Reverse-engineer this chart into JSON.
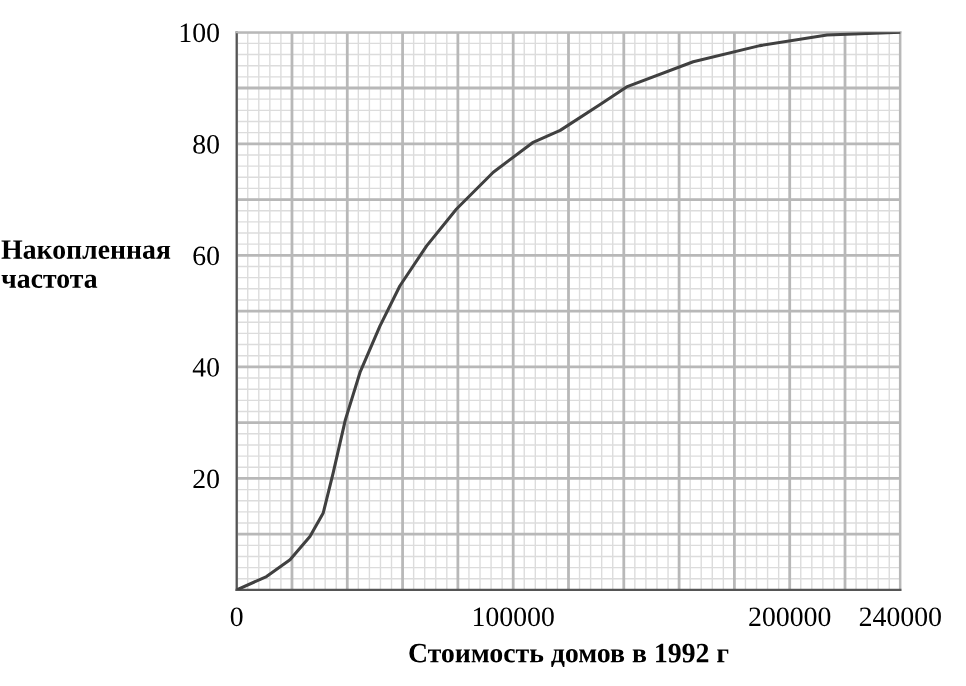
{
  "chart_data": {
    "type": "line",
    "xlabel": "Стоимость домов в 1992 г",
    "ylabel": "Накопленная\nчастота",
    "x": [
      0,
      10800,
      19300,
      26500,
      31300,
      34900,
      39300,
      44600,
      51800,
      59000,
      68700,
      79500,
      92800,
      107000,
      117000,
      131300,
      141000,
      165100,
      189200,
      213500,
      240000
    ],
    "series": [
      {
        "color": "#404040",
        "values": [
          0,
          2.4,
          5.4,
          9.6,
          13.8,
          21,
          30.5,
          39,
          47.3,
          54.5,
          61.7,
          68.3,
          74.9,
          80.2,
          82.4,
          87,
          90.2,
          94.7,
          97.6,
          99.5,
          100
        ]
      }
    ],
    "xlim": [
      0,
      240000
    ],
    "ylim": [
      0,
      100
    ],
    "xticks": [
      0,
      {
        "value": 20000,
        "label": null
      },
      {
        "value": 40000,
        "label": null
      },
      {
        "value": 60000,
        "label": null
      },
      {
        "value": 80000,
        "label": null
      },
      100000,
      {
        "value": 120000,
        "label": null
      },
      {
        "value": 140000,
        "label": null
      },
      {
        "value": 160000,
        "label": null
      },
      {
        "value": 180000,
        "label": null
      },
      200000,
      {
        "value": 220000,
        "label": null
      },
      240000
    ],
    "yticks": [
      {
        "value": 10,
        "label": null
      },
      20,
      {
        "value": 30,
        "label": null
      },
      40,
      {
        "value": 50,
        "label": null
      },
      60,
      {
        "value": 70,
        "label": null
      },
      80,
      {
        "value": 90,
        "label": null
      },
      100
    ],
    "grid": true,
    "marker": "none",
    "line_style": "solid"
  }
}
